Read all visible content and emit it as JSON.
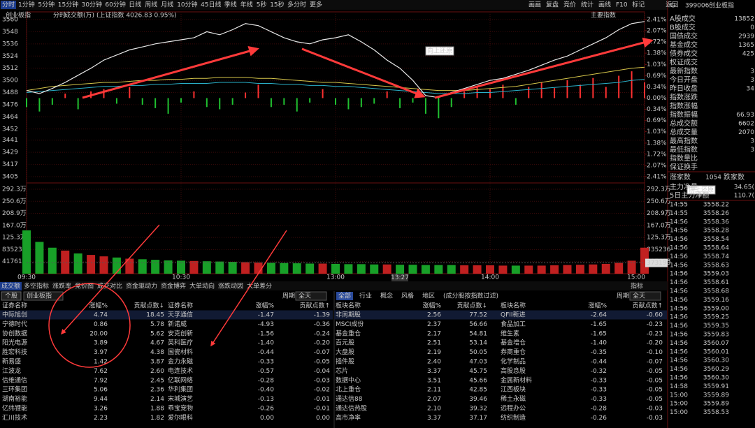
{
  "toolbar": [
    "分时",
    "1分钟",
    "5分钟",
    "15分钟",
    "30分钟",
    "60分钟",
    "日线",
    "周线",
    "月线",
    "10分钟",
    "45日线",
    "季线",
    "年线",
    "5秒",
    "15秒",
    "多分时",
    "更多"
  ],
  "toolbar_right": [
    "画画",
    "复盘",
    "竞价",
    "统计",
    "画线",
    "F10",
    "标记",
    "返回"
  ],
  "header": {
    "index_name": "创业板指",
    "mode": "分时",
    "volume_label": "成交额(万)",
    "ref_index": "(上证指数 4026.83 0.95%)",
    "main_index": "主要指数"
  },
  "annotation": "向上还原",
  "cursor_time": "13:27",
  "chart_data": [
    {
      "type": "line",
      "xlim": [
        0,
        240
      ],
      "xticks": [
        {
          "value": 0,
          "label": "09:30"
        },
        {
          "value": 60,
          "label": "10:30"
        },
        {
          "value": 120,
          "label": "13:00"
        },
        {
          "value": 180,
          "label": "14:00"
        },
        {
          "value": 240,
          "label": "15:00"
        }
      ],
      "ylim": [
        3405,
        3560
      ],
      "yticks": [
        3560,
        3548,
        3536,
        3524,
        3512,
        3500,
        3488,
        3476,
        3464,
        3452,
        3441,
        3429,
        3417,
        3405
      ],
      "y2lim": [
        -2.41,
        2.41
      ],
      "y2ticks": [
        {
          "value": 2.41,
          "label": "2.41%"
        },
        {
          "value": 2.07,
          "label": "2.07%"
        },
        {
          "value": 1.72,
          "label": "1.72%"
        },
        {
          "value": 1.38,
          "label": "1.38%"
        },
        {
          "value": 1.03,
          "label": "1.03%"
        },
        {
          "value": 0.69,
          "label": "0.69%"
        },
        {
          "value": 0.34,
          "label": "0.34%"
        },
        {
          "value": 0,
          "label": "0.00%"
        },
        {
          "value": -0.34,
          "label": "0.34%"
        },
        {
          "value": -0.69,
          "label": "0.69%"
        },
        {
          "value": -1.03,
          "label": "1.03%"
        },
        {
          "value": -1.38,
          "label": "1.38%"
        },
        {
          "value": -1.72,
          "label": "1.72%"
        },
        {
          "value": -2.07,
          "label": "2.07%"
        },
        {
          "value": -2.41,
          "label": "2.41%"
        }
      ],
      "x": [
        0,
        5,
        10,
        15,
        20,
        25,
        30,
        35,
        40,
        45,
        50,
        55,
        60,
        65,
        70,
        75,
        80,
        85,
        90,
        95,
        100,
        105,
        110,
        115,
        120,
        125,
        130,
        135,
        140,
        145,
        150,
        155,
        160,
        165,
        170,
        175,
        180,
        185,
        190,
        195,
        200,
        205,
        210,
        215,
        220,
        225,
        230,
        235,
        240
      ],
      "series": [
        {
          "color": "#e8e8e8",
          "values": [
            3490,
            3487,
            3492,
            3498,
            3505,
            3512,
            3520,
            3525,
            3530,
            3533,
            3536,
            3538,
            3540,
            3542,
            3548,
            3545,
            3550,
            3556,
            3554,
            3548,
            3542,
            3538,
            3536,
            3540,
            3542,
            3545,
            3538,
            3530,
            3520,
            3512,
            3500,
            3485,
            3483,
            3488,
            3492,
            3496,
            3500,
            3502,
            3506,
            3510,
            3515,
            3520,
            3524,
            3530,
            3536,
            3542,
            3550,
            3556,
            3558
          ]
        },
        {
          "color": "#d6c64a",
          "values": [
            3490,
            3492,
            3494,
            3495,
            3496,
            3497,
            3498,
            3498,
            3499,
            3500,
            3500,
            3501,
            3501,
            3502,
            3502,
            3503,
            3503,
            3503,
            3502,
            3502,
            3501,
            3500,
            3499,
            3498,
            3498,
            3497,
            3496,
            3495,
            3494,
            3493,
            3492,
            3491,
            3490,
            3490,
            3490,
            3491,
            3492,
            3493,
            3494,
            3496,
            3498,
            3500,
            3502,
            3504,
            3506,
            3508,
            3510,
            3512,
            3513
          ]
        },
        {
          "color": "#2ab0c8",
          "values": [
            3488,
            3489,
            3490,
            3491,
            3492,
            3493,
            3494,
            3494,
            3495,
            3495,
            3496,
            3496,
            3497,
            3497,
            3497,
            3498,
            3498,
            3498,
            3497,
            3497,
            3496,
            3496,
            3495,
            3495,
            3494,
            3494,
            3493,
            3492,
            3491,
            3490,
            3489,
            3488,
            3487,
            3487,
            3487,
            3488,
            3488,
            3489,
            3490,
            3491,
            3492,
            3493,
            3494,
            3495,
            3496,
            3497,
            3498,
            3500,
            3501
          ]
        }
      ],
      "strength": [
        -8,
        -12,
        -6,
        4,
        -10,
        6,
        8,
        -5,
        10,
        -6,
        -9,
        -14,
        -4,
        6,
        -8,
        -10,
        -6,
        5,
        12,
        -8,
        -6,
        -12,
        -4,
        8,
        -6,
        -10,
        -8,
        -5,
        6,
        -9,
        -4,
        -14,
        -18,
        -8,
        6,
        10,
        8,
        12,
        -6,
        10,
        14,
        9,
        16,
        12,
        18,
        10,
        20,
        24,
        14
      ],
      "up_color": "#ff3030",
      "down_color": "#20c030"
    },
    {
      "type": "bar",
      "ylim": [
        0,
        2923000
      ],
      "yticks": [
        {
          "value": 2923000,
          "label": "292.3万"
        },
        {
          "value": 2506000,
          "label": "250.6万"
        },
        {
          "value": 2089000,
          "label": "208.9万"
        },
        {
          "value": 1670000,
          "label": "167.0万"
        },
        {
          "value": 1253000,
          "label": "125.3万"
        },
        835236,
        417618
      ],
      "values": [
        1500000,
        1100000,
        900000,
        800000,
        700000,
        650000,
        600000,
        560000,
        520000,
        500000,
        480000,
        460000,
        450000,
        440000,
        430000,
        420000,
        410000,
        400000,
        390000,
        380000,
        370000,
        360000,
        350000,
        350000,
        340000,
        330000,
        330000,
        320000,
        320000,
        310000,
        310000,
        300000,
        300000,
        300000,
        290000,
        290000,
        290000,
        280000,
        280000,
        280000,
        280000,
        290000,
        300000,
        310000,
        320000,
        340000,
        380000,
        450000,
        900000
      ],
      "cursor_value": 373190
    }
  ],
  "indicator_tabs": [
    "成交额",
    "多空指标",
    "涨跌率",
    "竞价图",
    "成交对比",
    "资金驱动力",
    "资金博弈",
    "大单动向",
    "涨跌动因",
    "大单差分"
  ],
  "indicator_button": "指标",
  "stock_table": {
    "button": "个股",
    "index_select": "创业板指",
    "period_label": "周期",
    "period": "全天",
    "columns": [
      "证券名称",
      "涨幅%",
      "贡献点数↓",
      "证券名称",
      "涨幅%",
      "贡献点数↑"
    ],
    "rows": [
      [
        "中际旭创",
        "4.74",
        "18.45",
        "天孚通信",
        "-1.47",
        "-1.39"
      ],
      [
        "宁德时代",
        "0.86",
        "5.78",
        "新诺威",
        "-4.93",
        "-0.36"
      ],
      [
        "协创数据",
        "20.00",
        "5.62",
        "安克创新",
        "-1.56",
        "-0.24"
      ],
      [
        "阳光电源",
        "3.89",
        "4.67",
        "英科医疗",
        "-1.40",
        "-0.20"
      ],
      [
        "胜宏科技",
        "3.97",
        "4.38",
        "国瓷材料",
        "-0.44",
        "-0.07"
      ],
      [
        "新易盛",
        "1.42",
        "3.87",
        "金力永磁",
        "-0.33",
        "-0.05"
      ],
      [
        "江波龙",
        "7.62",
        "2.60",
        "电连技术",
        "-0.57",
        "-0.04"
      ],
      [
        "信维通信",
        "7.92",
        "2.45",
        "亿联网络",
        "-0.28",
        "-0.03"
      ],
      [
        "三环集团",
        "5.06",
        "2.36",
        "华利集团",
        "-0.40",
        "-0.02"
      ],
      [
        "湖南裕能",
        "9.44",
        "2.14",
        "宋城演艺",
        "-0.13",
        "-0.01"
      ],
      [
        "亿纬锂能",
        "3.26",
        "1.88",
        "乖宝宠物",
        "-0.26",
        "-0.01"
      ],
      [
        "汇川技术",
        "2.23",
        "1.82",
        "爱尔眼科",
        "0.00",
        "0.00"
      ]
    ]
  },
  "sector_table": {
    "tabs": [
      "全部",
      "行业",
      "概念",
      "风格",
      "地区"
    ],
    "filter_note": "(成分股按指数过滤)",
    "period_label": "周期",
    "period": "全天",
    "columns": [
      "板块名称",
      "涨幅%",
      "贡献点数↓",
      "板块名称",
      "涨幅%",
      "贡献点数↑"
    ],
    "rows": [
      [
        "非周期股",
        "2.56",
        "77.52",
        "QFII新进",
        "-2.64",
        "-0.60"
      ],
      [
        "MSCI成份",
        "2.37",
        "56.66",
        "食品加工",
        "-1.65",
        "-0.23"
      ],
      [
        "基金重仓",
        "2.17",
        "54.81",
        "维生素",
        "-1.65",
        "-0.23"
      ],
      [
        "百元股",
        "2.51",
        "53.14",
        "基金增仓",
        "-1.40",
        "-0.20"
      ],
      [
        "大盘股",
        "2.19",
        "50.05",
        "券商重仓",
        "-0.35",
        "-0.10"
      ],
      [
        "插件股",
        "2.40",
        "47.03",
        "化学制品",
        "-0.44",
        "-0.07"
      ],
      [
        "芯片",
        "3.37",
        "45.75",
        "高股息股",
        "-0.32",
        "-0.05"
      ],
      [
        "数据中心",
        "3.51",
        "45.66",
        "金属新材料",
        "-0.33",
        "-0.05"
      ],
      [
        "北上重仓",
        "2.11",
        "42.85",
        "江西板块",
        "-0.33",
        "-0.05"
      ],
      [
        "通达信88",
        "2.07",
        "39.46",
        "稀土永磁",
        "-0.33",
        "-0.05"
      ],
      [
        "通达信热股",
        "2.10",
        "39.32",
        "远程办公",
        "-0.28",
        "-0.03"
      ],
      [
        "高市净率",
        "3.37",
        "37.17",
        "纺织制造",
        "-0.26",
        "-0.03"
      ]
    ]
  },
  "quote": {
    "flag": "G",
    "code": "399006",
    "name": "创业板指",
    "stats": [
      {
        "label": "A股成交",
        "value": "13852"
      },
      {
        "label": "B股成交",
        "value": "0"
      },
      {
        "label": "国债成交",
        "value": "2939"
      },
      {
        "label": "基金成交",
        "value": "1365"
      },
      {
        "label": "债券成交",
        "value": "425"
      },
      {
        "label": "权证成交"
      },
      {
        "label": "最新指数",
        "value": "3"
      },
      {
        "label": "今日开盘",
        "value": "3"
      },
      {
        "label": "昨日收盘",
        "value": "34"
      },
      {
        "label": "指数涨跌"
      },
      {
        "label": "指数涨幅"
      },
      {
        "label": "指数振幅",
        "value": "66.93"
      },
      {
        "label": "总成交额",
        "value": "6602"
      },
      {
        "label": "总成交量",
        "value": "2070"
      },
      {
        "label": "最高指数",
        "value": "3"
      },
      {
        "label": "最低指数",
        "value": "3"
      },
      {
        "label": "指数量比"
      },
      {
        "label": "保证换手"
      }
    ],
    "breadth": [
      "涨家数",
      "1054",
      "跌家数"
    ],
    "flows": [
      {
        "label": "主力净量",
        "value": "34.65("
      },
      {
        "label": "5日主力净额",
        "value": "110.7("
      }
    ],
    "tick_times": [
      "14:55",
      "14:55",
      "14:56",
      "14:56",
      "14:56",
      "14:56",
      "14:56",
      "14:56",
      "14:56",
      "14:56",
      "14:56",
      "14:56",
      "14:56",
      "14:56",
      "14:56",
      "14:56",
      "14:56",
      "14:56",
      "14:56",
      "14:56",
      "14:56",
      "14:58",
      "15:00",
      "15:00",
      "15:00"
    ],
    "tick_prices": [
      "3558.22",
      "3558.26",
      "3558.36",
      "3558.28",
      "3558.54",
      "3558.64",
      "3558.74",
      "3558.63",
      "3559.03",
      "3558.61",
      "3558.68",
      "3559.16",
      "3559.00",
      "3559.25",
      "3559.35",
      "3559.83",
      "3560.07",
      "3560.01",
      "3560.30",
      "3560.29",
      "3560.30",
      "3559.91",
      "3559.89",
      "3559.89",
      "3558.53"
    ]
  }
}
